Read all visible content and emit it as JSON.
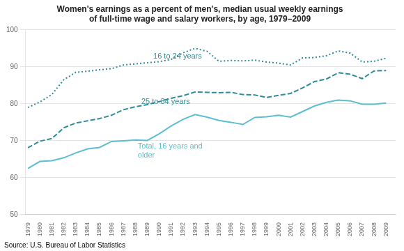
{
  "chart_data": {
    "type": "line",
    "title": "Women's earnings as a percent of men's, median usual weekly earnings\nof full-time wage and salary workers, by age, 1979–2009",
    "source": "Source: U.S. Bureau of Labor Statistics",
    "x": [
      1979,
      1980,
      1981,
      1982,
      1983,
      1984,
      1985,
      1986,
      1987,
      1988,
      1989,
      1990,
      1991,
      1992,
      1993,
      1994,
      1995,
      1996,
      1997,
      1998,
      1999,
      2000,
      2001,
      2002,
      2003,
      2004,
      2005,
      2006,
      2007,
      2008,
      2009
    ],
    "series": [
      {
        "color": "#2e8b9a",
        "line_style": "dotted",
        "values": [
          79.0,
          80.5,
          82.5,
          86.5,
          88.5,
          88.8,
          89.2,
          89.5,
          90.5,
          90.8,
          91.1,
          91.4,
          92.0,
          93.8,
          95.0,
          94.2,
          91.5,
          91.7,
          91.6,
          91.8,
          91.3,
          91.0,
          90.5,
          92.4,
          92.5,
          93.0,
          94.3,
          93.7,
          91.3,
          91.5,
          92.3
        ]
      },
      {
        "color": "#2e8b9a",
        "line_style": "dashed",
        "values": [
          68.1,
          69.9,
          70.6,
          73.5,
          74.8,
          75.4,
          76.0,
          76.9,
          78.4,
          79.2,
          79.8,
          80.6,
          81.5,
          82.2,
          83.2,
          83.1,
          83.0,
          83.1,
          82.5,
          82.4,
          81.7,
          82.3,
          82.8,
          84.3,
          86.0,
          86.7,
          88.4,
          88.0,
          86.8,
          88.9,
          89.0
        ]
      },
      {
        "color": "#5bbfcf",
        "line_style": "solid",
        "values": [
          62.5,
          64.4,
          64.6,
          65.4,
          66.7,
          67.8,
          68.2,
          69.8,
          70.0,
          70.2,
          70.1,
          71.9,
          74.0,
          75.8,
          77.1,
          76.4,
          75.5,
          75.0,
          74.4,
          76.3,
          76.5,
          76.9,
          76.4,
          77.9,
          79.4,
          80.4,
          81.0,
          80.8,
          79.9,
          79.9,
          80.2
        ]
      }
    ],
    "annotations": [
      {
        "text": "16 to 24 years",
        "x": 1989.5,
        "y": 91.8,
        "color": "#2e8b9a"
      },
      {
        "text": "25 to 34 years",
        "x": 1988.5,
        "y": 79.5,
        "color": "#2e8b9a"
      },
      {
        "text": "Total, 16 years and\nolder",
        "x": 1988.2,
        "y": 69.5,
        "color": "#5bbfcf"
      }
    ],
    "xlim": [
      1978.8,
      2009.8
    ],
    "xticks": [
      1979,
      1980,
      1981,
      1982,
      1983,
      1984,
      1985,
      1986,
      1987,
      1988,
      1989,
      1990,
      1991,
      1992,
      1993,
      1994,
      1995,
      1996,
      1997,
      1998,
      1999,
      2000,
      2001,
      2002,
      2003,
      2004,
      2005,
      2006,
      2007,
      2008,
      2009
    ],
    "ylim": [
      50,
      100
    ],
    "yticks": [
      50,
      60,
      70,
      80,
      90,
      100
    ],
    "grid": "y",
    "legend": false
  }
}
